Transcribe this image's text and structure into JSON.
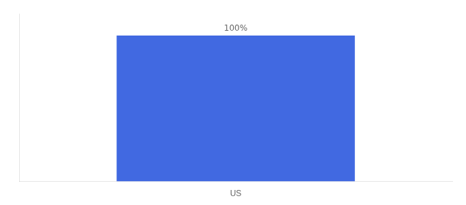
{
  "chart_data": {
    "type": "bar",
    "categories": [
      "US"
    ],
    "values": [
      100
    ],
    "value_labels": [
      "100%"
    ],
    "data_labels": true,
    "color": "#4169E1",
    "ylim": [
      0,
      115
    ],
    "yticks": [],
    "tick_labels": "x",
    "grid": false
  }
}
